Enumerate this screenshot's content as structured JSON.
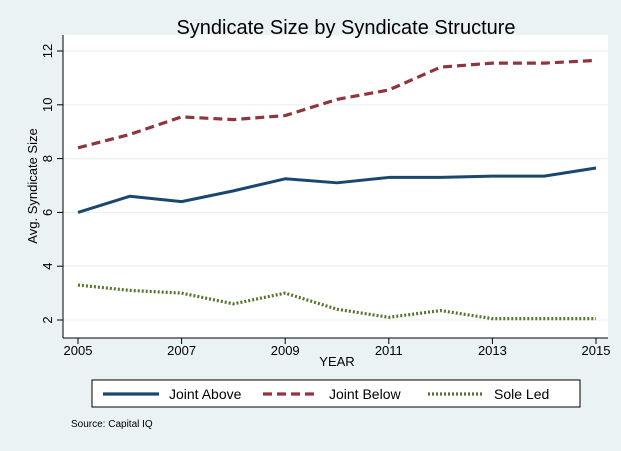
{
  "chart_data": {
    "type": "line",
    "title": "Syndicate Size by Syndicate Structure",
    "xlabel": "YEAR",
    "ylabel": "Avg. Syndicate Size",
    "source": "Source: Capital IQ",
    "x": [
      2005,
      2006,
      2007,
      2008,
      2009,
      2010,
      2011,
      2012,
      2013,
      2014,
      2015
    ],
    "xticks": [
      "2005",
      "2007",
      "2009",
      "2011",
      "2013",
      "2015"
    ],
    "yticks": [
      "2",
      "4",
      "6",
      "8",
      "10",
      "12"
    ],
    "xlim": [
      2005,
      2015
    ],
    "ylim": [
      2,
      12
    ],
    "grid": "horizontal",
    "legend_position": "bottom",
    "series": [
      {
        "name": "Joint Above",
        "color": "#1a476f",
        "style": "solid",
        "values": [
          6.0,
          6.6,
          6.4,
          6.8,
          7.25,
          7.1,
          7.3,
          7.3,
          7.35,
          7.35,
          7.65
        ]
      },
      {
        "name": "Joint Below",
        "color": "#90353b",
        "style": "dashed",
        "values": [
          8.4,
          8.9,
          9.55,
          9.45,
          9.6,
          10.2,
          10.55,
          11.4,
          11.55,
          11.55,
          11.65
        ]
      },
      {
        "name": "Sole Led",
        "color": "#55752f",
        "style": "dotted",
        "values": [
          3.3,
          3.1,
          3.0,
          2.6,
          3.0,
          2.4,
          2.1,
          2.35,
          2.05,
          2.05,
          2.05
        ]
      }
    ]
  }
}
